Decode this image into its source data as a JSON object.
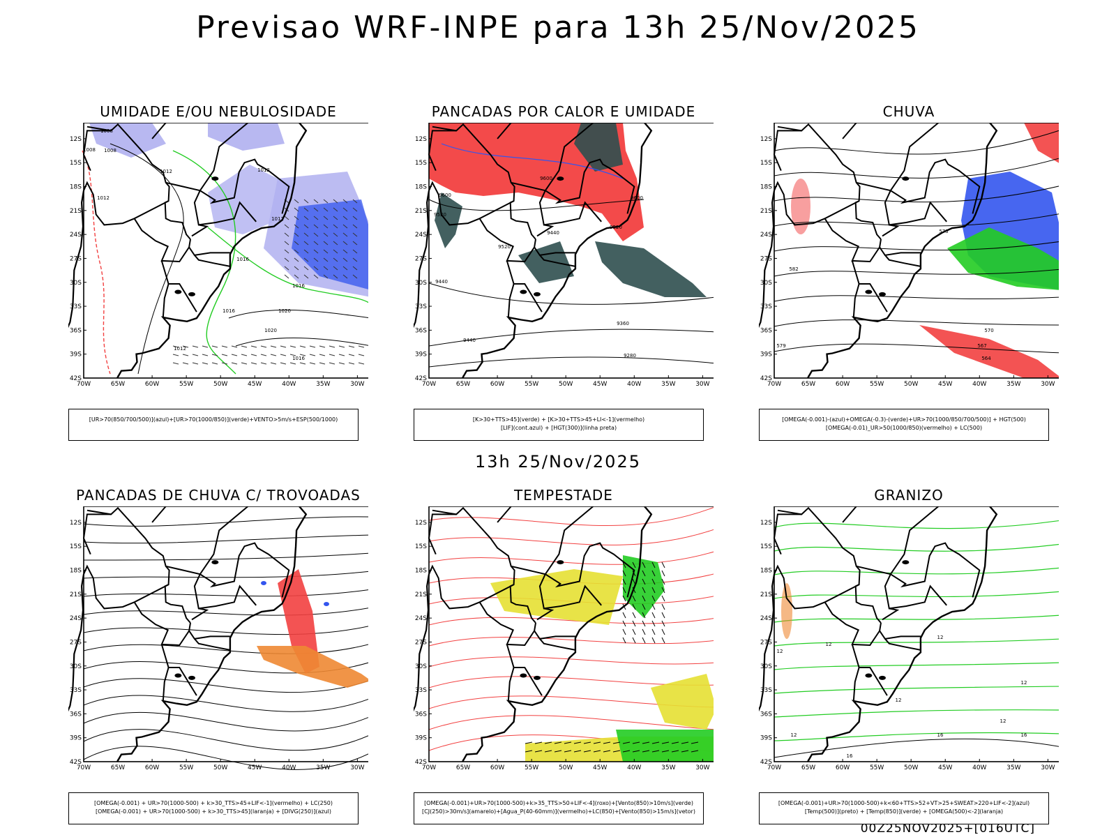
{
  "title": "Previsao WRF-INPE  para 13h 25/Nov/2025",
  "subtitle": "13h 25/Nov/2025",
  "footer": "00Z25NOV2025+[016UTC]",
  "axes": {
    "lat_labels": [
      "12S",
      "15S",
      "18S",
      "21S",
      "24S",
      "27S",
      "30S",
      "33S",
      "36S",
      "39S",
      "42S"
    ],
    "lon_labels": [
      "70W",
      "65W",
      "60W",
      "55W",
      "50W",
      "45W",
      "40W",
      "35W",
      "30W"
    ]
  },
  "colors": {
    "red": "#f24040",
    "green": "#22cc22",
    "blue": "#3355ee",
    "lavender": "#b0b0f0",
    "darkteal": "#2f4f4f",
    "yellow": "#e6e033",
    "orange": "#ee8833",
    "black": "#000000"
  },
  "panels": [
    {
      "title": "UMIDADE E/OU NEBULOSIDADE",
      "legend": [
        "[UR>70(850/700/500)](azul)+[UR>70(1000/850)](verde)+VENTO>5m/s+ESP(500/1000)"
      ],
      "contour_labels": [
        "1008",
        "1008",
        "1008",
        "1012",
        "1012",
        "1012",
        "1016",
        "1012",
        "1016",
        "1016",
        "1020",
        "1020",
        "1016",
        "1012"
      ]
    },
    {
      "title": "PANCADAS POR CALOR E UMIDADE",
      "legend": [
        "[K>30+TTS>45](verde) + [K>30+TTS>45+LI<-1](vermelho)",
        "[LIF](cont.azul) + [HGT(300)](linha preta)"
      ],
      "contour_labels": [
        "9600",
        "9600",
        "9600",
        "9520",
        "9520",
        "9520",
        "9440",
        "9440",
        "9440",
        "9360",
        "9280"
      ]
    },
    {
      "title": "CHUVA",
      "legend": [
        "[OMEGA(-0.001)-(azul)+OMEGA(-0.3)-(verde)+UR>70(1000/850/700/500)] + HGT(500)",
        "[OMEGA(-0.01)_UR>50(1000/850)(vermelho) + LC(500)"
      ],
      "contour_labels": [
        "582",
        "573",
        "570",
        "579",
        "567",
        "564"
      ]
    },
    {
      "title": "PANCADAS DE CHUVA C/ TROVOADAS",
      "legend": [
        "[OMEGA(-0.001) + UR>70(1000-500) + k>30_TTS>45+LIF<-1](vermelho) + LC(250)",
        "[OMEGA(-0.001) + UR>70(1000-500) + k>30_TTS>45](laranja) + [DIVG(250)](azul)"
      ],
      "contour_labels": []
    },
    {
      "title": "TEMPESTADE",
      "legend": [
        "[OMEGA(-0.001)+UR>70(1000-500)+k>35_TTS>50+LIF<-4](roxo)+[Vento(850)>10m/s](verde)",
        "[CJ(250)>30m/s](amarelo)+[Agua_P(40-60mm)](vermelho)+LC(850)+[Vento(850)>15m/s](vetor)"
      ],
      "contour_labels": []
    },
    {
      "title": "GRANIZO",
      "legend": [
        "[OMEGA(-0.001)+UR>70(1000-500)+k<60+TTS>52+VT>25+SWEAT>220+LIF<-2](azul)",
        "[Temp(500)](preto) + [Temp(850)](verde) + [OMEGA(500)<-2](laranja)"
      ],
      "contour_labels": [
        "12",
        "12",
        "12",
        "12",
        "12",
        "12",
        "12",
        "16",
        "16",
        "16"
      ]
    }
  ]
}
